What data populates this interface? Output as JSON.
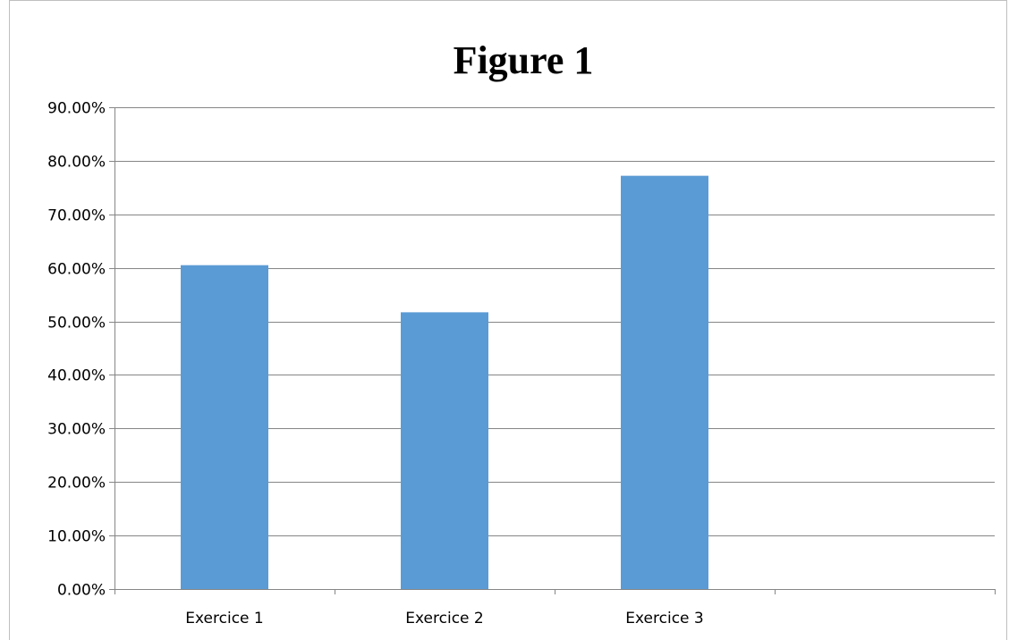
{
  "chart_data": {
    "type": "bar",
    "title": "Figure 1",
    "xlabel": "",
    "ylabel": "",
    "categories": [
      "Exercice 1",
      "Exercice 2",
      "Exercice 3",
      ""
    ],
    "values": [
      0.605,
      0.517,
      0.772,
      null
    ],
    "ylim": [
      0,
      0.9
    ],
    "yticks": [
      0,
      0.1,
      0.2,
      0.3,
      0.4,
      0.5,
      0.6,
      0.7,
      0.8,
      0.9
    ],
    "ytick_labels": [
      "0.00%",
      "10.00%",
      "20.00%",
      "30.00%",
      "40.00%",
      "50.00%",
      "60.00%",
      "70.00%",
      "80.00%",
      "90.00%"
    ],
    "grid": true,
    "legend": "none",
    "colors": {
      "bar": "#5b9bd5",
      "grid": "#868686",
      "axis": "#868686"
    }
  }
}
